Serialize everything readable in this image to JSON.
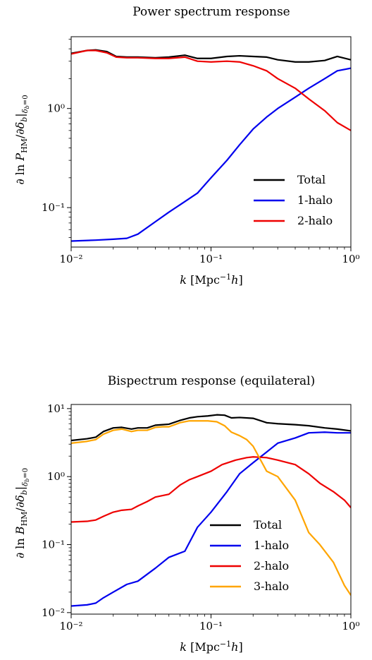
{
  "charts": [
    {
      "title": "Power spectrum response",
      "xlabel": "k [Mpc⁻¹h]",
      "ylabel": "∂ ln P_HM/∂δ_b|δ_b=0",
      "yticks": [
        {
          "v": 1,
          "label": "10⁰"
        },
        {
          "v": 0.1,
          "label": "10⁻¹"
        }
      ],
      "legend": [
        "Total",
        "1-halo",
        "2-halo"
      ]
    },
    {
      "title": "Bispectrum response (equilateral)",
      "xlabel": "k [Mpc⁻¹h]",
      "ylabel": "∂ ln B_HM/∂δ_b|δ_b=0",
      "yticks": [
        {
          "v": 10,
          "label": "10¹"
        },
        {
          "v": 1,
          "label": "10⁰"
        },
        {
          "v": 0.1,
          "label": "10⁻¹"
        },
        {
          "v": 0.01,
          "label": "10⁻²"
        }
      ],
      "legend": [
        "Total",
        "1-halo",
        "2-halo",
        "3-halo"
      ]
    }
  ],
  "xticks": [
    {
      "v": 0.01,
      "label": "10⁻²"
    },
    {
      "v": 0.1,
      "label": "10⁻¹"
    },
    {
      "v": 1,
      "label": "10⁰"
    }
  ],
  "chart_data": [
    {
      "type": "line",
      "title": "Power spectrum response",
      "xlabel": "k [Mpc^-1 h]",
      "ylabel": "∂ ln P_HM/∂δ_b|δ_b=0",
      "xscale": "log",
      "yscale": "log",
      "xlim": [
        0.01,
        1
      ],
      "ylim": [
        0.04,
        5.3
      ],
      "legend_position": "lower-right",
      "series": [
        {
          "name": "Total",
          "color": "#000000",
          "x": [
            0.01,
            0.013,
            0.015,
            0.018,
            0.021,
            0.025,
            0.03,
            0.04,
            0.05,
            0.065,
            0.08,
            0.1,
            0.13,
            0.16,
            0.2,
            0.25,
            0.3,
            0.4,
            0.5,
            0.65,
            0.8,
            1.0
          ],
          "y": [
            3.6,
            3.85,
            3.9,
            3.75,
            3.35,
            3.3,
            3.3,
            3.25,
            3.3,
            3.45,
            3.2,
            3.2,
            3.35,
            3.4,
            3.35,
            3.3,
            3.1,
            2.95,
            2.95,
            3.05,
            3.35,
            3.1
          ]
        },
        {
          "name": "1-halo",
          "color": "#0000ee",
          "x": [
            0.01,
            0.015,
            0.02,
            0.025,
            0.03,
            0.04,
            0.05,
            0.065,
            0.08,
            0.1,
            0.13,
            0.16,
            0.2,
            0.25,
            0.3,
            0.4,
            0.5,
            0.65,
            0.8,
            1.0
          ],
          "y": [
            0.046,
            0.047,
            0.048,
            0.049,
            0.054,
            0.072,
            0.09,
            0.115,
            0.14,
            0.2,
            0.3,
            0.43,
            0.62,
            0.82,
            1.0,
            1.3,
            1.6,
            2.0,
            2.4,
            2.55
          ]
        },
        {
          "name": "2-halo",
          "color": "#ee0000",
          "x": [
            0.01,
            0.013,
            0.015,
            0.018,
            0.021,
            0.025,
            0.03,
            0.04,
            0.05,
            0.065,
            0.08,
            0.1,
            0.13,
            0.16,
            0.2,
            0.25,
            0.3,
            0.4,
            0.5,
            0.65,
            0.8,
            1.0
          ],
          "y": [
            3.55,
            3.85,
            3.85,
            3.65,
            3.3,
            3.25,
            3.25,
            3.2,
            3.2,
            3.3,
            3.0,
            2.95,
            3.0,
            2.95,
            2.7,
            2.4,
            2.0,
            1.6,
            1.25,
            0.95,
            0.72,
            0.6
          ]
        }
      ]
    },
    {
      "type": "line",
      "title": "Bispectrum response (equilateral)",
      "xlabel": "k [Mpc^-1 h]",
      "ylabel": "∂ ln B_HM/∂δ_b|δ_b=0",
      "xscale": "log",
      "yscale": "log",
      "xlim": [
        0.01,
        1
      ],
      "ylim": [
        0.0095,
        11.5
      ],
      "legend_position": "lower-center",
      "series": [
        {
          "name": "Total",
          "color": "#000000",
          "x": [
            0.01,
            0.013,
            0.015,
            0.017,
            0.02,
            0.023,
            0.027,
            0.03,
            0.035,
            0.04,
            0.045,
            0.05,
            0.06,
            0.07,
            0.08,
            0.095,
            0.11,
            0.125,
            0.14,
            0.16,
            0.2,
            0.25,
            0.3,
            0.4,
            0.5,
            0.65,
            0.8,
            1.0
          ],
          "y": [
            3.4,
            3.6,
            3.8,
            4.6,
            5.2,
            5.3,
            5.0,
            5.2,
            5.2,
            5.7,
            5.8,
            5.9,
            6.7,
            7.3,
            7.6,
            7.8,
            8.1,
            8.0,
            7.3,
            7.4,
            7.2,
            6.2,
            6.0,
            5.8,
            5.6,
            5.2,
            5.0,
            4.7
          ]
        },
        {
          "name": "1-halo",
          "color": "#0000ee",
          "x": [
            0.01,
            0.013,
            0.015,
            0.017,
            0.02,
            0.025,
            0.03,
            0.04,
            0.05,
            0.065,
            0.08,
            0.1,
            0.13,
            0.16,
            0.2,
            0.25,
            0.3,
            0.4,
            0.5,
            0.65,
            0.8,
            1.0
          ],
          "y": [
            0.0125,
            0.013,
            0.0138,
            0.0165,
            0.02,
            0.026,
            0.029,
            0.045,
            0.065,
            0.08,
            0.18,
            0.3,
            0.6,
            1.1,
            1.6,
            2.3,
            3.1,
            3.7,
            4.4,
            4.5,
            4.4,
            4.4
          ]
        },
        {
          "name": "2-halo",
          "color": "#ee0000",
          "x": [
            0.01,
            0.013,
            0.015,
            0.017,
            0.02,
            0.023,
            0.027,
            0.03,
            0.035,
            0.04,
            0.05,
            0.06,
            0.07,
            0.08,
            0.1,
            0.12,
            0.15,
            0.18,
            0.2,
            0.25,
            0.3,
            0.4,
            0.5,
            0.6,
            0.75,
            0.9,
            1.0
          ],
          "y": [
            0.215,
            0.22,
            0.23,
            0.26,
            0.3,
            0.32,
            0.33,
            0.37,
            0.43,
            0.5,
            0.55,
            0.75,
            0.9,
            1.0,
            1.2,
            1.5,
            1.75,
            1.9,
            1.95,
            1.9,
            1.75,
            1.5,
            1.1,
            0.8,
            0.6,
            0.45,
            0.35
          ]
        },
        {
          "name": "3-halo",
          "color": "#ffa500",
          "x": [
            0.01,
            0.013,
            0.015,
            0.017,
            0.02,
            0.023,
            0.027,
            0.03,
            0.035,
            0.04,
            0.045,
            0.05,
            0.06,
            0.07,
            0.08,
            0.095,
            0.11,
            0.125,
            0.14,
            0.16,
            0.18,
            0.2,
            0.25,
            0.3,
            0.4,
            0.5,
            0.6,
            0.75,
            0.9,
            1.0
          ],
          "y": [
            3.1,
            3.3,
            3.5,
            4.2,
            4.8,
            5.0,
            4.6,
            4.8,
            4.8,
            5.3,
            5.4,
            5.4,
            6.2,
            6.6,
            6.6,
            6.6,
            6.4,
            5.6,
            4.5,
            4.0,
            3.5,
            2.8,
            1.2,
            1.0,
            0.45,
            0.15,
            0.1,
            0.055,
            0.025,
            0.018
          ]
        }
      ]
    }
  ]
}
